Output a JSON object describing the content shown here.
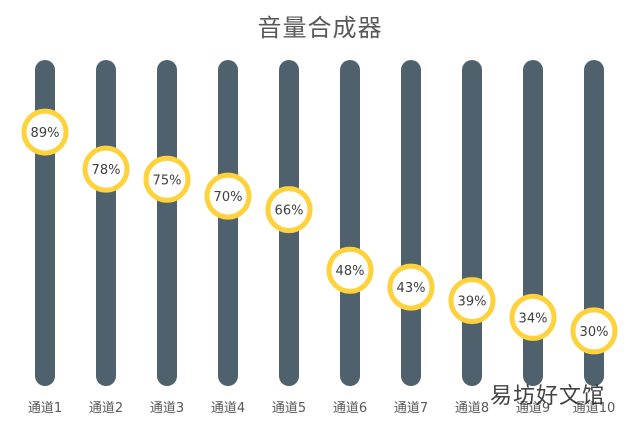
{
  "chart_data": {
    "type": "bar",
    "title": "音量合成器",
    "categories": [
      "通道1",
      "通道2",
      "通道3",
      "通道4",
      "通道5",
      "通道6",
      "通道7",
      "通道8",
      "通道9",
      "通道10"
    ],
    "values": [
      89,
      78,
      75,
      70,
      66,
      48,
      43,
      39,
      34,
      30
    ],
    "data_labels": [
      "89%",
      "78%",
      "75%",
      "70%",
      "66%",
      "48%",
      "43%",
      "39%",
      "34%",
      "30%"
    ],
    "ylim": [
      0,
      100
    ],
    "grid": false,
    "legend": "none",
    "colors": {
      "track": "#4e616d",
      "knob_ring": "#fdd23a",
      "knob_fill": "#ffffff",
      "label": "#404040"
    }
  },
  "watermark": "易坊好文馆"
}
